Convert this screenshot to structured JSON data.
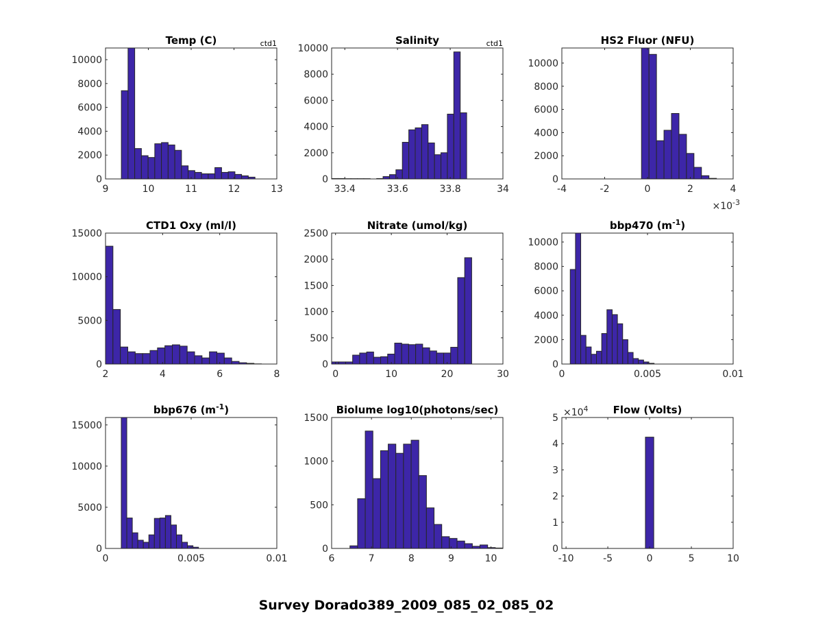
{
  "figure": {
    "suptitle": "Survey Dorado389_2009_085_02_085_02",
    "bar_color": "#3d26a8",
    "edge_color": "#262626"
  },
  "chart_data": [
    {
      "type": "bar",
      "title": "Temp (C)",
      "corner_label": "ctd1",
      "xlim": [
        9,
        13
      ],
      "ylim": [
        0,
        10980
      ],
      "xticks": [
        9,
        10,
        11,
        12,
        13
      ],
      "xtick_labels": [
        "9",
        "10",
        "11",
        "12",
        "13"
      ],
      "yticks": [
        0,
        2000,
        4000,
        6000,
        8000,
        10000
      ],
      "ytick_labels": [
        "0",
        "2000",
        "4000",
        "6000",
        "8000",
        "10000"
      ],
      "x_exponent": "",
      "y_exponent": "",
      "bin_start": 9.37,
      "bin_width": 0.156,
      "values": [
        7400,
        11000,
        2550,
        1950,
        1800,
        2950,
        3050,
        2850,
        2400,
        1100,
        700,
        550,
        430,
        430,
        950,
        550,
        600,
        380,
        260,
        150
      ]
    },
    {
      "type": "bar",
      "title": "Salinity",
      "corner_label": "ctd1",
      "xlim": [
        33.35,
        34
      ],
      "ylim": [
        0,
        10000
      ],
      "xticks": [
        33.4,
        33.6,
        33.8,
        34
      ],
      "xtick_labels": [
        "33.4",
        "33.6",
        "33.8",
        "34"
      ],
      "yticks": [
        0,
        2000,
        4000,
        6000,
        8000,
        10000
      ],
      "ytick_labels": [
        "0",
        "2000",
        "4000",
        "6000",
        "8000",
        "10000"
      ],
      "x_exponent": "",
      "y_exponent": "",
      "bin_start": 33.35,
      "bin_width": 0.0244,
      "values": [
        30,
        30,
        20,
        20,
        20,
        20,
        0,
        30,
        180,
        330,
        700,
        2800,
        3750,
        3900,
        4150,
        2750,
        1850,
        2000,
        4950,
        9700,
        5050
      ]
    },
    {
      "type": "bar",
      "title": "HS2 Fluor (NFU)",
      "corner_label": "",
      "xlim": [
        -0.004,
        0.004
      ],
      "ylim": [
        0,
        11300
      ],
      "xticks": [
        -0.004,
        -0.002,
        0,
        0.002,
        0.004
      ],
      "xtick_labels": [
        "-4",
        "-2",
        "0",
        "2",
        "4"
      ],
      "yticks": [
        0,
        2000,
        4000,
        6000,
        8000,
        10000
      ],
      "ytick_labels": [
        "0",
        "2000",
        "4000",
        "6000",
        "8000",
        "10000"
      ],
      "x_exponent": "-3",
      "y_exponent": "",
      "bin_start": -0.00028,
      "bin_width": 0.00035,
      "values": [
        11300,
        10750,
        3300,
        4200,
        5650,
        3850,
        2200,
        1000,
        280,
        50
      ]
    },
    {
      "type": "bar",
      "title": "CTD1 Oxy (ml/l)",
      "corner_label": "",
      "xlim": [
        2,
        8
      ],
      "ylim": [
        0,
        15000
      ],
      "xticks": [
        2,
        4,
        6,
        8
      ],
      "xtick_labels": [
        "2",
        "4",
        "6",
        "8"
      ],
      "yticks": [
        0,
        5000,
        10000,
        15000
      ],
      "ytick_labels": [
        "0",
        "5000",
        "10000",
        "15000"
      ],
      "x_exponent": "",
      "y_exponent": "",
      "bin_start": 2.0,
      "bin_width": 0.26,
      "values": [
        13500,
        6250,
        1950,
        1400,
        1200,
        1200,
        1550,
        1850,
        2100,
        2200,
        2050,
        1400,
        950,
        700,
        1400,
        1250,
        700,
        300,
        150,
        80,
        20
      ]
    },
    {
      "type": "bar",
      "title": "Nitrate (umol/kg)",
      "corner_label": "",
      "xlim": [
        -0.7,
        30
      ],
      "ylim": [
        0,
        2500
      ],
      "xticks": [
        0,
        10,
        20,
        30
      ],
      "xtick_labels": [
        "0",
        "10",
        "20",
        "30"
      ],
      "yticks": [
        0,
        500,
        1000,
        1500,
        2000,
        2500
      ],
      "ytick_labels": [
        "0",
        "500",
        "1000",
        "1500",
        "2000",
        "2500"
      ],
      "x_exponent": "",
      "y_exponent": "",
      "bin_start": -0.7,
      "bin_width": 1.255,
      "values": [
        40,
        40,
        40,
        170,
        210,
        230,
        130,
        140,
        190,
        400,
        380,
        370,
        380,
        310,
        250,
        210,
        210,
        320,
        1650,
        2030
      ]
    },
    {
      "type": "bar",
      "title": "bbp470 (m",
      "title_sup": "-1",
      "title_end": ")",
      "corner_label": "",
      "xlim": [
        0,
        0.01
      ],
      "ylim": [
        0,
        10730
      ],
      "xticks": [
        0,
        0.005,
        0.01
      ],
      "xtick_labels": [
        "0",
        "0.005",
        "0.01"
      ],
      "yticks": [
        0,
        2000,
        4000,
        6000,
        8000,
        10000
      ],
      "ytick_labels": [
        "0",
        "2000",
        "4000",
        "6000",
        "8000",
        "10000"
      ],
      "x_exponent": "",
      "y_exponent": "",
      "bin_start": 0.00049,
      "bin_width": 0.000306,
      "values": [
        7750,
        10730,
        2350,
        1400,
        800,
        1050,
        2500,
        4450,
        4050,
        3300,
        2000,
        950,
        450,
        330,
        170,
        60
      ]
    },
    {
      "type": "bar",
      "title": "bbp676 (m",
      "title_sup": "-1",
      "title_end": ")",
      "corner_label": "",
      "xlim": [
        0,
        0.01
      ],
      "ylim": [
        0,
        15900
      ],
      "xticks": [
        0,
        0.005,
        0.01
      ],
      "xtick_labels": [
        "0",
        "0.005",
        "0.01"
      ],
      "yticks": [
        0,
        5000,
        10000,
        15000
      ],
      "ytick_labels": [
        "0",
        "5000",
        "10000",
        "15000"
      ],
      "x_exponent": "",
      "y_exponent": "",
      "bin_start": 0.00092,
      "bin_width": 0.000322,
      "values": [
        15900,
        3700,
        1900,
        1000,
        750,
        1650,
        3650,
        3700,
        4000,
        2850,
        1650,
        750,
        330,
        150
      ]
    },
    {
      "type": "bar",
      "title": "Biolume log10(photons/sec)",
      "corner_label": "",
      "xlim": [
        6,
        10.3
      ],
      "ylim": [
        0,
        1500
      ],
      "xticks": [
        6,
        7,
        8,
        9,
        10
      ],
      "xtick_labels": [
        "6",
        "7",
        "8",
        "9",
        "10"
      ],
      "yticks": [
        0,
        500,
        1000,
        1500
      ],
      "ytick_labels": [
        "0",
        "500",
        "1000",
        "1500"
      ],
      "x_exponent": "",
      "y_exponent": "",
      "bin_start": 6.46,
      "bin_width": 0.192,
      "values": [
        30,
        570,
        1345,
        800,
        1120,
        1195,
        1090,
        1195,
        1240,
        835,
        465,
        275,
        135,
        115,
        85,
        55,
        25,
        40,
        10,
        5
      ]
    },
    {
      "type": "bar",
      "title": "Flow (Volts)",
      "corner_label": "",
      "xlim": [
        -10.5,
        10
      ],
      "ylim": [
        0,
        50000
      ],
      "xticks": [
        -10,
        -5,
        0,
        5,
        10
      ],
      "xtick_labels": [
        "-10",
        "-5",
        "0",
        "5",
        "10"
      ],
      "yticks": [
        0,
        10000,
        20000,
        30000,
        40000,
        50000
      ],
      "ytick_labels": [
        "0",
        "1",
        "2",
        "3",
        "4",
        "5"
      ],
      "x_exponent": "",
      "y_exponent": "4",
      "bin_start": -0.5,
      "bin_width": 1.0,
      "values": [
        42500
      ]
    }
  ]
}
